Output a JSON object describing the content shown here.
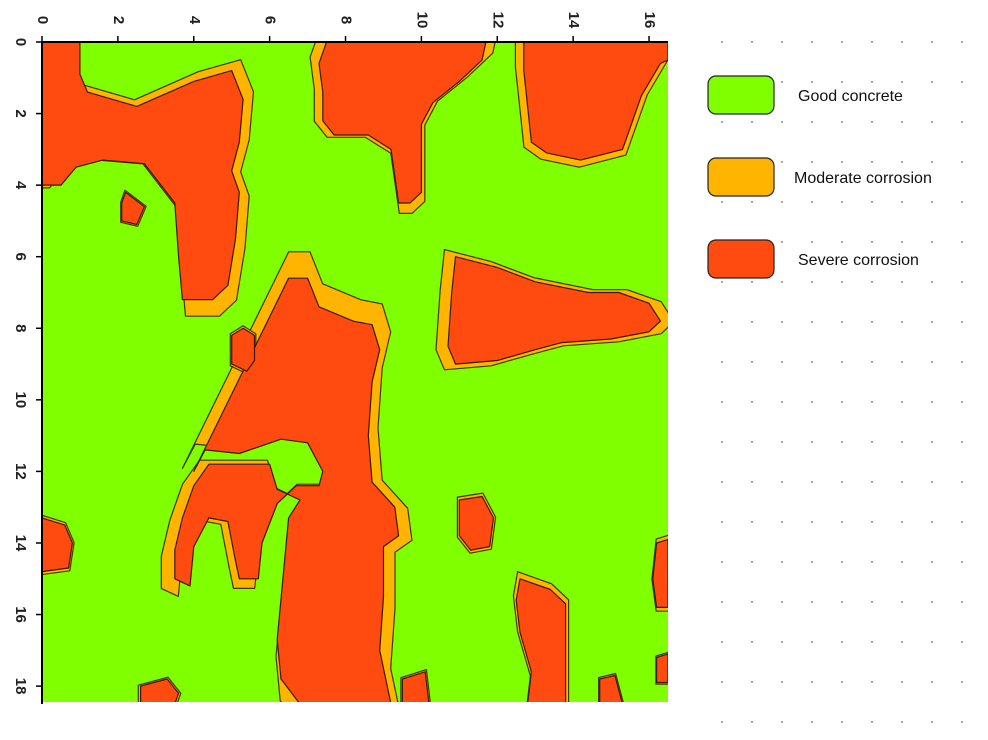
{
  "chart_data": {
    "type": "heatmap",
    "title": "",
    "xlabel": "",
    "ylabel": "",
    "xlim": [
      0,
      16.5
    ],
    "ylim": [
      0,
      18.5
    ],
    "x_axis_position": "top",
    "y_axis_inverted": true,
    "x_ticks": [
      "0",
      "2",
      "4",
      "6",
      "8",
      "10",
      "12",
      "14",
      "16"
    ],
    "y_ticks": [
      "0",
      "2",
      "4",
      "6",
      "8",
      "10",
      "12",
      "14",
      "16",
      "18"
    ],
    "grid": false,
    "legend_position": "right",
    "categories": [
      {
        "name": "Good concrete",
        "color": "#80ff00"
      },
      {
        "name": "Moderate corrosion",
        "color": "#ffb400"
      },
      {
        "name": "Severe corrosion",
        "color": "#ff4a10"
      }
    ],
    "regions": [
      {
        "class": "Severe corrosion",
        "outline": [
          [
            0,
            0
          ],
          [
            1,
            0
          ],
          [
            1,
            0.9
          ],
          [
            1.2,
            1.4
          ],
          [
            2.5,
            1.8
          ],
          [
            4,
            1.1
          ],
          [
            5,
            0.8
          ],
          [
            5.3,
            1.6
          ],
          [
            5.2,
            2.8
          ],
          [
            5,
            3.6
          ],
          [
            5.2,
            4.2
          ],
          [
            5.1,
            5.5
          ],
          [
            4.9,
            6.8
          ],
          [
            4.5,
            7.2
          ],
          [
            3.7,
            7.2
          ],
          [
            3.6,
            6
          ],
          [
            3.5,
            4.5
          ],
          [
            2.7,
            3.4
          ],
          [
            1.6,
            3.3
          ],
          [
            0.9,
            3.5
          ],
          [
            0.5,
            4
          ],
          [
            0,
            4
          ]
        ]
      },
      {
        "class": "Severe corrosion",
        "outline": [
          [
            2.2,
            4.2
          ],
          [
            2.7,
            4.6
          ],
          [
            2.5,
            5.1
          ],
          [
            2.1,
            5.0
          ],
          [
            2.1,
            4.5
          ]
        ]
      },
      {
        "class": "Severe corrosion",
        "outline": [
          [
            7.5,
            0
          ],
          [
            11.7,
            0
          ],
          [
            11.6,
            0.5
          ],
          [
            11,
            1.1
          ],
          [
            10.3,
            1.7
          ],
          [
            10,
            2.3
          ],
          [
            10,
            4.2
          ],
          [
            9.7,
            4.5
          ],
          [
            9.4,
            4.5
          ],
          [
            9.2,
            3
          ],
          [
            8.6,
            2.6
          ],
          [
            7.7,
            2.6
          ],
          [
            7.4,
            2.2
          ],
          [
            7.4,
            1.4
          ],
          [
            7.3,
            0.6
          ]
        ]
      },
      {
        "class": "Severe corrosion",
        "outline": [
          [
            12.7,
            0
          ],
          [
            16.5,
            0
          ],
          [
            16.5,
            0.5
          ],
          [
            16.3,
            0.6
          ],
          [
            15.8,
            1.5
          ],
          [
            15.5,
            2.4
          ],
          [
            15.3,
            3.0
          ],
          [
            14.2,
            3.3
          ],
          [
            13.3,
            3.1
          ],
          [
            12.9,
            2.8
          ],
          [
            12.8,
            1.8
          ],
          [
            12.7,
            0.8
          ]
        ]
      },
      {
        "class": "Severe corrosion",
        "outline": [
          [
            10.9,
            6.0
          ],
          [
            12,
            6.3
          ],
          [
            13,
            6.7
          ],
          [
            14.4,
            7
          ],
          [
            15.2,
            7
          ],
          [
            16.0,
            7.3
          ],
          [
            16.3,
            7.8
          ],
          [
            16.0,
            8.1
          ],
          [
            15,
            8.3
          ],
          [
            13.7,
            8.4
          ],
          [
            13,
            8.6
          ],
          [
            12,
            8.9
          ],
          [
            10.9,
            9.0
          ],
          [
            10.7,
            8.5
          ],
          [
            10.8,
            7
          ]
        ]
      },
      {
        "class": "Severe corrosion",
        "outline": [
          [
            6.5,
            6.6
          ],
          [
            7,
            6.6
          ],
          [
            7.3,
            7.4
          ],
          [
            8.2,
            7.8
          ],
          [
            8.7,
            7.9
          ],
          [
            8.9,
            8.6
          ],
          [
            8.7,
            9.5
          ],
          [
            8.6,
            11
          ],
          [
            8.7,
            12.3
          ],
          [
            9.3,
            13.0
          ],
          [
            9.4,
            13.8
          ],
          [
            9.0,
            14.1
          ],
          [
            9.0,
            15.5
          ],
          [
            8.9,
            17
          ],
          [
            9.2,
            18.5
          ],
          [
            6.8,
            18.5
          ],
          [
            6.3,
            17.8
          ],
          [
            6.2,
            16.7
          ],
          [
            6.5,
            13.3
          ],
          [
            6.8,
            12.8
          ],
          [
            6.2,
            12.5
          ],
          [
            6,
            11.8
          ],
          [
            4.4,
            11.8
          ],
          [
            4,
            12.4
          ],
          [
            3.7,
            13.3
          ],
          [
            3.5,
            14.2
          ],
          [
            3.5,
            15.0
          ],
          [
            3.9,
            15.2
          ],
          [
            4.0,
            14.1
          ],
          [
            4.4,
            13.3
          ],
          [
            4.9,
            13.4
          ],
          [
            5.1,
            14.5
          ],
          [
            5.2,
            15.0
          ],
          [
            5.7,
            15.0
          ],
          [
            5.8,
            14.0
          ],
          [
            6.2,
            12.9
          ],
          [
            6.7,
            12.4
          ],
          [
            7.3,
            12.4
          ],
          [
            7.4,
            12.0
          ],
          [
            7.0,
            11.2
          ],
          [
            6.3,
            11.1
          ],
          [
            5.2,
            11.5
          ],
          [
            4.3,
            11.4
          ],
          [
            4.0,
            12.0
          ]
        ]
      },
      {
        "class": "Severe corrosion",
        "outline": [
          [
            5.0,
            8.2
          ],
          [
            5.3,
            8.0
          ],
          [
            5.6,
            8.2
          ],
          [
            5.6,
            8.9
          ],
          [
            5.4,
            9.2
          ],
          [
            5.0,
            9.0
          ]
        ]
      },
      {
        "class": "Severe corrosion",
        "outline": [
          [
            0,
            13.3
          ],
          [
            0.6,
            13.5
          ],
          [
            0.8,
            14.0
          ],
          [
            0.7,
            14.7
          ],
          [
            0,
            14.8
          ]
        ]
      },
      {
        "class": "Severe corrosion",
        "outline": [
          [
            11.0,
            12.8
          ],
          [
            11.6,
            12.7
          ],
          [
            11.9,
            13.3
          ],
          [
            11.8,
            14.1
          ],
          [
            11.3,
            14.2
          ],
          [
            11.0,
            13.8
          ]
        ]
      },
      {
        "class": "Severe corrosion",
        "outline": [
          [
            12.6,
            15.0
          ],
          [
            13.4,
            15.3
          ],
          [
            13.8,
            15.7
          ],
          [
            13.8,
            17.0
          ],
          [
            13.8,
            18.5
          ],
          [
            12.8,
            18.5
          ],
          [
            12.9,
            17.6
          ],
          [
            12.6,
            16.5
          ],
          [
            12.5,
            15.6
          ]
        ]
      },
      {
        "class": "Severe corrosion",
        "outline": [
          [
            16.2,
            14.0
          ],
          [
            16.5,
            13.9
          ],
          [
            16.5,
            15.8
          ],
          [
            16.2,
            15.8
          ],
          [
            16.1,
            15
          ]
        ]
      },
      {
        "class": "Severe corrosion",
        "outline": [
          [
            2.6,
            18.0
          ],
          [
            3.3,
            17.8
          ],
          [
            3.6,
            18.2
          ],
          [
            3.5,
            18.5
          ],
          [
            2.6,
            18.5
          ]
        ]
      },
      {
        "class": "Severe corrosion",
        "outline": [
          [
            9.5,
            17.8
          ],
          [
            10.1,
            17.6
          ],
          [
            10.2,
            18.5
          ],
          [
            9.5,
            18.5
          ]
        ]
      },
      {
        "class": "Severe corrosion",
        "outline": [
          [
            14.7,
            17.8
          ],
          [
            15.1,
            17.7
          ],
          [
            15.3,
            18.5
          ],
          [
            14.7,
            18.5
          ]
        ]
      },
      {
        "class": "Severe corrosion",
        "outline": [
          [
            16.2,
            17.2
          ],
          [
            16.5,
            17.1
          ],
          [
            16.5,
            17.9
          ],
          [
            16.2,
            17.9
          ]
        ]
      }
    ]
  }
}
